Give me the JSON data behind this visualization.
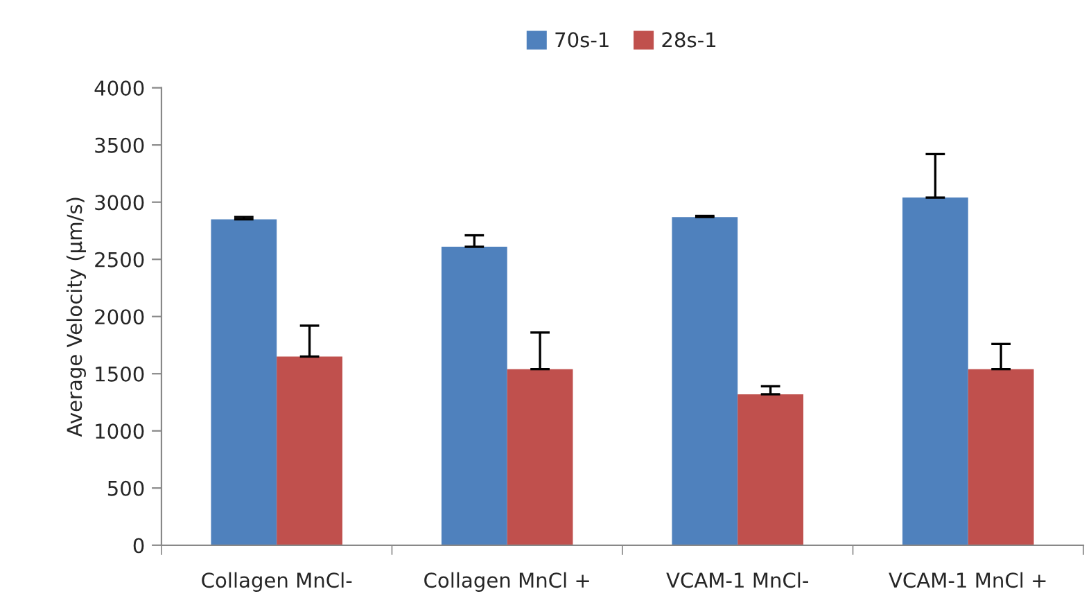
{
  "chart_data": {
    "type": "bar",
    "ylabel": "Average Velocity (µm/s)",
    "categories": [
      "Collagen MnCl-",
      "Collagen MnCl +",
      "VCAM-1 MnCl-",
      "VCAM-1 MnCl +"
    ],
    "series": [
      {
        "name": "70s-1",
        "color": "#4f81bd",
        "values": [
          2850,
          2610,
          2870,
          3040
        ],
        "errors": [
          [
            2850,
            2870
          ],
          [
            2610,
            2710
          ],
          [
            2870,
            2880
          ],
          [
            3040,
            3420
          ]
        ]
      },
      {
        "name": "28s-1",
        "color": "#c0504d",
        "values": [
          1650,
          1540,
          1320,
          1540
        ],
        "errors": [
          [
            1650,
            1920
          ],
          [
            1540,
            1860
          ],
          [
            1320,
            1390
          ],
          [
            1540,
            1760
          ]
        ]
      }
    ],
    "ylim": [
      0,
      4000
    ],
    "yticks": [
      0,
      500,
      1000,
      1500,
      2000,
      2500,
      3000,
      3500,
      4000
    ],
    "grid": false,
    "legend": "top"
  }
}
